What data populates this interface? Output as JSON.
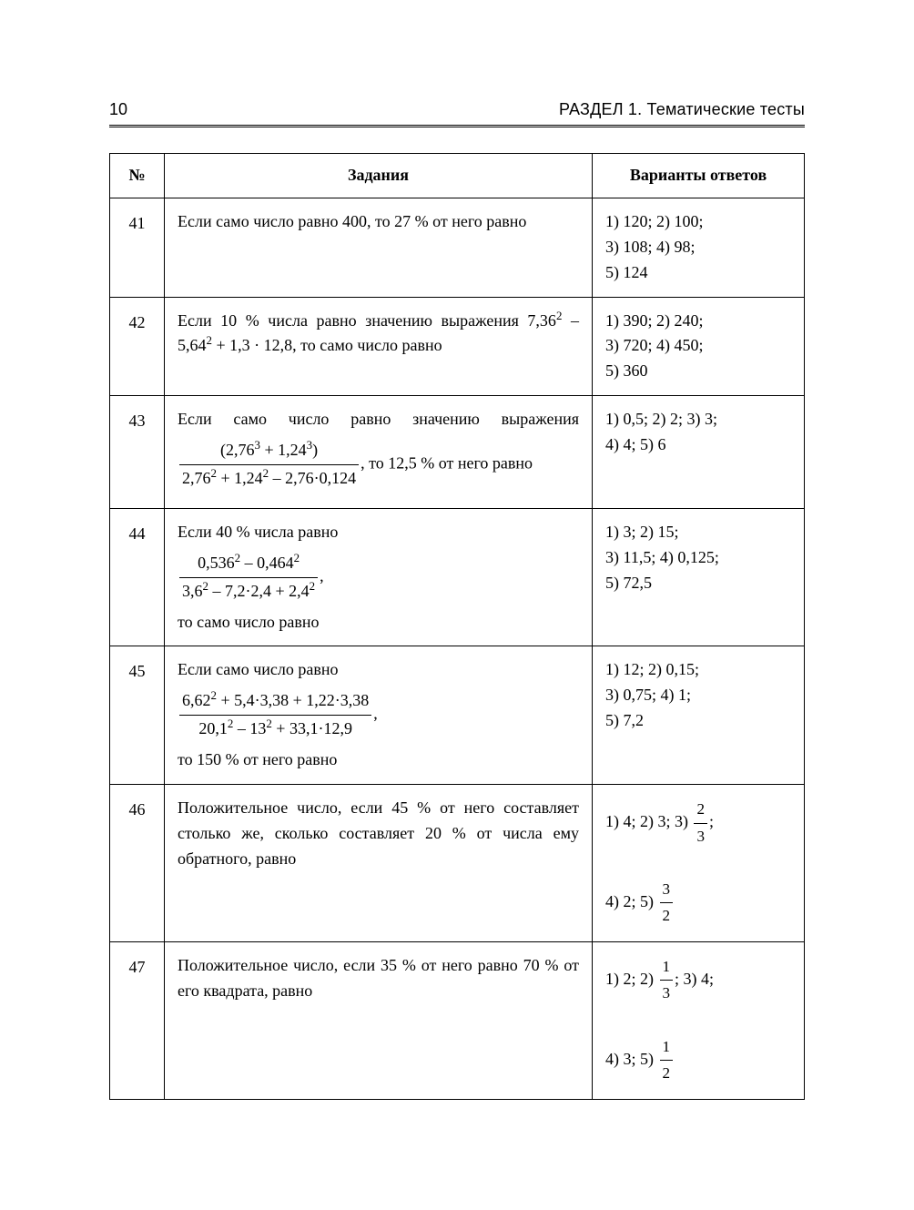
{
  "header": {
    "page_number": "10",
    "section_title": "РАЗДЕЛ 1. Тематические тесты"
  },
  "table": {
    "headers": {
      "num": "№",
      "task": "Задания",
      "answers": "Варианты ответов"
    },
    "rows": [
      {
        "n": "41",
        "task": {
          "text": "Если само число равно 400, то 27 % от него равно"
        },
        "answers": {
          "l1": "1) 120; 2) 100;",
          "l2": "3) 108; 4) 98;",
          "l3": "5) 124"
        }
      },
      {
        "n": "42",
        "task": {
          "pre": "Если 10 % числа равно значению выра­жения 7,36",
          "mid1": " – 5,64",
          "mid2": " + 1,3 · 12,8, то само число равно"
        },
        "answers": {
          "l1": "1) 390; 2) 240;",
          "l2": "3) 720; 4) 450;",
          "l3": "5) 360"
        }
      },
      {
        "n": "43",
        "task": {
          "pre": "Если само число равно значению выра­жения ",
          "frac_top_a": "(2,76",
          "frac_top_b": " + 1,24",
          "frac_top_c": ")",
          "frac_bot_a": "2,76",
          "frac_bot_b": " + 1,24",
          "frac_bot_c": " – 2,76·0,124",
          "post": ", то 12,5 % от него равно"
        },
        "answers": {
          "l1": "1) 0,5; 2) 2; 3) 3;",
          "l2": "4) 4; 5) 6"
        }
      },
      {
        "n": "44",
        "task": {
          "pre": "Если 40 % числа равно",
          "frac_top_a": "0,536",
          "frac_top_b": " – 0,464",
          "frac_bot_a": "3,6",
          "frac_bot_b": " – 7,2·2,4 + 2,4",
          "post_comma": ",",
          "post": "то само число равно"
        },
        "answers": {
          "l1": "1) 3; 2) 15;",
          "l2": "3) 11,5; 4) 0,125;",
          "l3": "5) 72,5"
        }
      },
      {
        "n": "45",
        "task": {
          "pre": "Если само число равно",
          "frac_top_a": "6,62",
          "frac_top_b": " + 5,4·3,38 + 1,22·3,38",
          "frac_bot_a": "20,1",
          "frac_bot_b": " – 13",
          "frac_bot_c": " + 33,1·12,9",
          "post_comma": ",",
          "post": "то 150 % от него равно"
        },
        "answers": {
          "l1": "1) 12; 2) 0,15;",
          "l2": "3) 0,75; 4) 1;",
          "l3": "5) 7,2"
        }
      },
      {
        "n": "46",
        "task": {
          "text": "Положительное число, если 45 % от не­го составляет столько же, сколько со­ставляет 20 % от числа ему обратного, равно"
        },
        "answers": {
          "p1": "1) 4; 2) 3; 3) ",
          "f1n": "2",
          "f1d": "3",
          "p2": ";",
          "p3": "4) 2; 5) ",
          "f2n": "3",
          "f2d": "2"
        }
      },
      {
        "n": "47",
        "task": {
          "text": "Положительное число, если 35 % от не­го равно 70 % от его квадрата, равно"
        },
        "answers": {
          "p1": "1) 2; 2) ",
          "f1n": "1",
          "f1d": "3",
          "p2": "; 3) 4;",
          "p3": "4) 3; 5) ",
          "f2n": "1",
          "f2d": "2"
        }
      }
    ]
  }
}
